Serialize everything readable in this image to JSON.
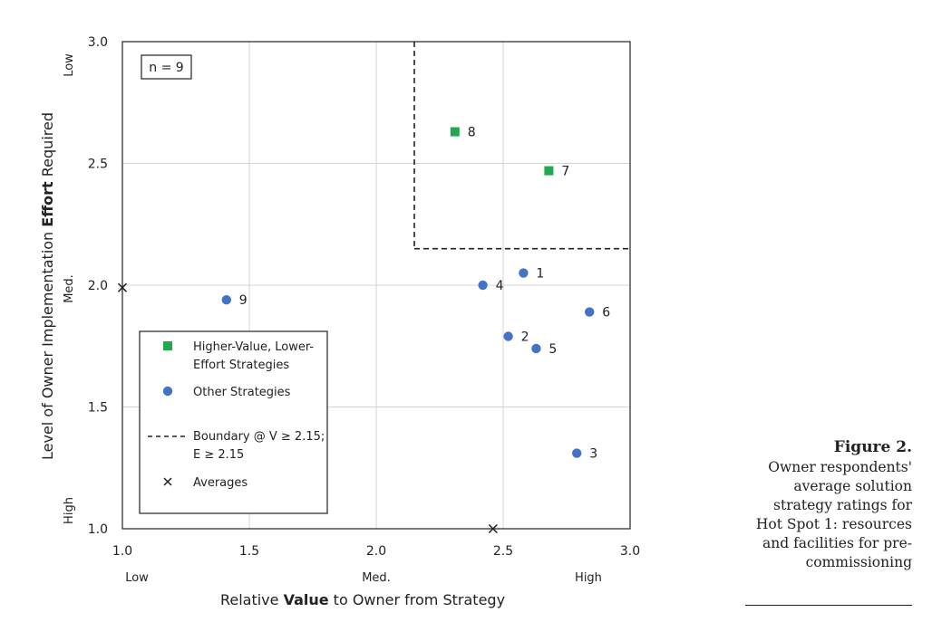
{
  "chart_data": {
    "type": "scatter",
    "xlim": [
      1.0,
      3.0
    ],
    "ylim": [
      1.0,
      3.0
    ],
    "x_ticks": [
      "1.0",
      "1.5",
      "2.0",
      "2.5",
      "3.0"
    ],
    "y_ticks": [
      "1.0",
      "1.5",
      "2.0",
      "2.5",
      "3.0"
    ],
    "x_qual_labels": [
      "Low",
      "Med.",
      "High"
    ],
    "y_qual_labels": [
      "High",
      "Med.",
      "Low"
    ],
    "xlabel_pre": "Relative ",
    "xlabel_bold": "Value",
    "xlabel_post": " to Owner from Strategy",
    "ylabel_pre": "Level of Owner Implementation ",
    "ylabel_bold": "Effort",
    "ylabel_post": " Required",
    "annotation": "n = 9",
    "grid": true,
    "legend_position": "bottom-left",
    "series": [
      {
        "name_lines": [
          "Higher-Value, Lower-",
          "Effort Strategies"
        ],
        "marker": "square",
        "color": "#1faa4f",
        "points": [
          {
            "label": "8",
            "x": 2.31,
            "y": 2.63
          },
          {
            "label": "7",
            "x": 2.68,
            "y": 2.47
          }
        ]
      },
      {
        "name_lines": [
          "Other Strategies"
        ],
        "marker": "circle",
        "color": "#4472c4",
        "points": [
          {
            "label": "1",
            "x": 2.58,
            "y": 2.05
          },
          {
            "label": "4",
            "x": 2.42,
            "y": 2.0
          },
          {
            "label": "9",
            "x": 1.41,
            "y": 1.94
          },
          {
            "label": "6",
            "x": 2.84,
            "y": 1.89
          },
          {
            "label": "2",
            "x": 2.52,
            "y": 1.79
          },
          {
            "label": "5",
            "x": 2.63,
            "y": 1.74
          },
          {
            "label": "3",
            "x": 2.79,
            "y": 1.31
          }
        ]
      }
    ],
    "boundary": {
      "name_lines": [
        "Boundary @ V ≥ 2.15;",
        "E ≥ 2.15"
      ],
      "x": 2.15,
      "y": 2.15
    },
    "averages": {
      "name_lines": [
        "Averages"
      ],
      "x_avg": 2.46,
      "y_avg": 1.99
    }
  },
  "caption": {
    "title": "Figure 2.",
    "lines": [
      "Owner respondents'",
      "average solution",
      "strategy ratings for",
      "Hot Spot 1: resources",
      "and facilities for pre-",
      "commissioning"
    ]
  }
}
